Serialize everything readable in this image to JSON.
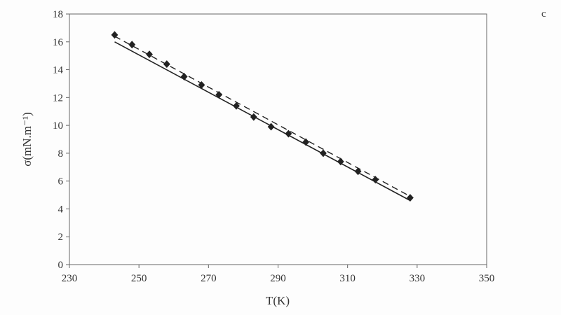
{
  "chart_data": {
    "type": "line",
    "title": "",
    "xlabel": "T(K)",
    "ylabel": "σ(mN.m⁻¹)",
    "xlim": [
      230,
      350
    ],
    "ylim": [
      0,
      18
    ],
    "xticks": [
      230,
      250,
      270,
      290,
      310,
      330,
      350
    ],
    "yticks": [
      0,
      2,
      4,
      6,
      8,
      10,
      12,
      14,
      16,
      18
    ],
    "grid": false,
    "series": [
      {
        "style": "markers",
        "x": [
          243,
          248,
          253,
          258,
          263,
          268,
          273,
          278,
          283,
          288,
          293,
          298,
          303,
          308,
          313,
          318,
          328
        ],
        "y": [
          16.5,
          15.8,
          15.1,
          14.4,
          13.5,
          12.9,
          12.2,
          11.4,
          10.6,
          9.9,
          9.4,
          8.8,
          8.0,
          7.4,
          6.7,
          6.1,
          4.8
        ]
      },
      {
        "style": "solid",
        "x": [
          243,
          328
        ],
        "y": [
          16.0,
          4.6
        ]
      },
      {
        "style": "dashed",
        "x": [
          243,
          328
        ],
        "y": [
          16.4,
          4.9
        ]
      }
    ]
  },
  "corner_label": "c"
}
